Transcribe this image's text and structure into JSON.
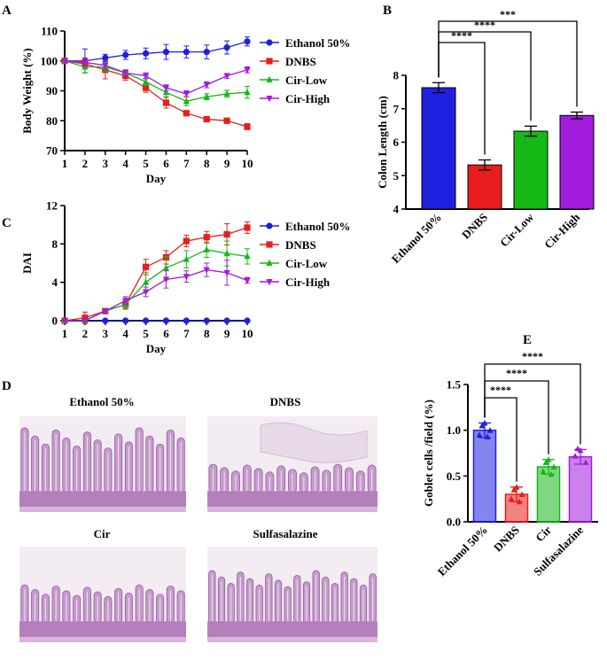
{
  "panels": {
    "A": "A",
    "B": "B",
    "C": "C",
    "D": "D",
    "E": "E"
  },
  "colors": {
    "ethanol": "#1f1fe0",
    "dnbs": "#e81d1d",
    "cir_low": "#16b816",
    "cir_high": "#a11cdc",
    "tissue": "#c79bcd"
  },
  "micrographs": {
    "titles": [
      "Ethanol 50%",
      "DNBS",
      "Cir",
      "Sulfasalazine"
    ],
    "icons": [
      "histology-image-ethanol",
      "histology-image-dnbs",
      "histology-image-cir",
      "histology-image-sulfasalazine"
    ]
  },
  "chart_data": [
    {
      "id": "A",
      "type": "line",
      "xlabel": "Day",
      "ylabel": "Body Weight (%)",
      "xlim": [
        1,
        10
      ],
      "ylim": [
        70,
        110
      ],
      "xticks": [
        1,
        2,
        3,
        4,
        5,
        6,
        7,
        8,
        9,
        10
      ],
      "yticks": [
        70,
        80,
        90,
        100,
        110
      ],
      "x": [
        1,
        2,
        3,
        4,
        5,
        6,
        7,
        8,
        9,
        10
      ],
      "legend_position": "right",
      "series": [
        {
          "name": "Ethanol 50%",
          "marker": "circle",
          "values": [
            100,
            100,
            101,
            102,
            102.5,
            103,
            103,
            103,
            104.5,
            106.5
          ],
          "err": [
            0.5,
            4,
            1.2,
            1.5,
            1.8,
            2.5,
            2,
            2.3,
            2.2,
            1.5
          ]
        },
        {
          "name": "DNBS",
          "marker": "square",
          "values": [
            100,
            99,
            97,
            95,
            91,
            86,
            82.5,
            80.5,
            80,
            78
          ],
          "err": [
            0.5,
            1.5,
            3,
            1.5,
            1.5,
            1.8,
            0.8,
            0.5,
            0.5,
            1
          ]
        },
        {
          "name": "Cir-Low",
          "marker": "triangle-up",
          "values": [
            100,
            98,
            98,
            96,
            93,
            89.5,
            86.5,
            88,
            89,
            89.5
          ],
          "err": [
            0.5,
            2,
            1.5,
            1,
            1.2,
            1.5,
            1.5,
            1,
            1.2,
            2
          ]
        },
        {
          "name": "Cir-High",
          "marker": "triangle-down",
          "values": [
            100,
            99.5,
            98.5,
            96,
            95,
            91,
            89,
            92,
            95,
            97
          ],
          "err": [
            0.5,
            1.5,
            1.5,
            1,
            1,
            1,
            1,
            1,
            0.8,
            1
          ]
        }
      ]
    },
    {
      "id": "B",
      "type": "bar",
      "ylabel": "Colon Length (cm)",
      "ylim": [
        4,
        8
      ],
      "yticks": [
        4,
        5,
        6,
        7,
        8
      ],
      "categories": [
        "Ethanol 50%",
        "DNBS",
        "Cir-Low",
        "Cir-High"
      ],
      "values": [
        7.63,
        5.32,
        6.33,
        6.8
      ],
      "err": [
        0.15,
        0.15,
        0.15,
        0.1
      ],
      "significance": [
        {
          "from": 0,
          "to": 1,
          "label": "****"
        },
        {
          "from": 0,
          "to": 2,
          "label": "****"
        },
        {
          "from": 0,
          "to": 3,
          "label": "***"
        }
      ]
    },
    {
      "id": "C",
      "type": "line",
      "xlabel": "Day",
      "ylabel": "DAI",
      "xlim": [
        1,
        10
      ],
      "ylim": [
        0,
        12
      ],
      "xticks": [
        1,
        2,
        3,
        4,
        5,
        6,
        7,
        8,
        9,
        10
      ],
      "yticks": [
        0,
        4,
        8,
        12
      ],
      "x": [
        1,
        2,
        3,
        4,
        5,
        6,
        7,
        8,
        9,
        10
      ],
      "legend_position": "right",
      "series": [
        {
          "name": "Ethanol 50%",
          "marker": "circle",
          "values": [
            0,
            0,
            0,
            0,
            0,
            0,
            0,
            0,
            0,
            0
          ],
          "err": [
            0,
            0,
            0,
            0,
            0,
            0,
            0,
            0,
            0,
            0
          ]
        },
        {
          "name": "DNBS",
          "marker": "square",
          "values": [
            0,
            0.3,
            1,
            1.7,
            5.6,
            6.6,
            8.3,
            8.7,
            9,
            9.7
          ],
          "err": [
            0,
            0.6,
            0.2,
            0.5,
            0.8,
            0.7,
            0.6,
            0.6,
            1.1,
            0.6
          ]
        },
        {
          "name": "Cir-Low",
          "marker": "triangle-up",
          "values": [
            0,
            0,
            1,
            1.7,
            4,
            5.5,
            6.4,
            7.4,
            7,
            6.7
          ],
          "err": [
            0,
            0,
            0.2,
            0.4,
            1,
            1.2,
            0.9,
            0.8,
            1.3,
            0.8
          ]
        },
        {
          "name": "Cir-High",
          "marker": "triangle-down",
          "values": [
            0,
            0,
            1,
            2.1,
            3,
            4.3,
            4.6,
            5.3,
            5,
            4.2
          ],
          "err": [
            0,
            0,
            0.2,
            0.4,
            0.5,
            0.9,
            0.6,
            0.7,
            1.3,
            0.3
          ]
        }
      ]
    },
    {
      "id": "E",
      "type": "bar",
      "ylabel": "Goblet cells /field (%)",
      "ylim": [
        0,
        1.5
      ],
      "yticks": [
        0.0,
        0.5,
        1.0,
        1.5
      ],
      "categories": [
        "Ethanol 50%",
        "DNBS",
        "Cir",
        "Sulfasalazine"
      ],
      "values": [
        1.0,
        0.3,
        0.6,
        0.71
      ],
      "err": [
        0.08,
        0.08,
        0.08,
        0.08
      ],
      "points": [
        [
          1.08,
          0.95,
          1.0,
          1.05,
          0.93
        ],
        [
          0.38,
          0.25,
          0.3,
          0.35,
          0.22
        ],
        [
          0.68,
          0.55,
          0.6,
          0.65,
          0.52
        ],
        [
          0.78,
          0.72,
          0.65,
          0.8
        ]
      ],
      "significance": [
        {
          "from": 0,
          "to": 1,
          "label": "****"
        },
        {
          "from": 0,
          "to": 2,
          "label": "****"
        },
        {
          "from": 0,
          "to": 3,
          "label": "****"
        }
      ]
    }
  ]
}
